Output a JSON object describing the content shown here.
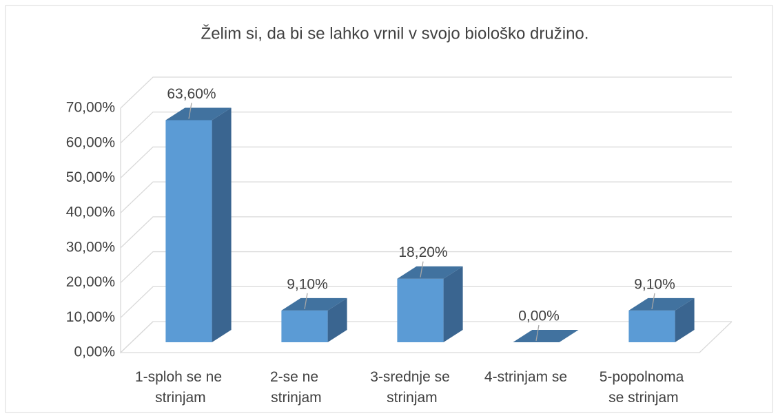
{
  "chart_data": {
    "type": "bar3d",
    "title": "Želim si, da bi se lahko vrnil v svojo biološko družino.",
    "categories": [
      "1-sploh se ne strinjam",
      "2-se ne strinjam",
      "3-srednje se strinjam",
      "4-strinjam se",
      "5-popolnoma se strinjam"
    ],
    "values": [
      63.6,
      9.1,
      18.2,
      0,
      9.1
    ],
    "value_labels": [
      "63,60%",
      "9,10%",
      "18,20%",
      "0,00%",
      "9,10%"
    ],
    "color": "#5b9bd5",
    "ylim": [
      0,
      70
    ],
    "yticks": [
      {
        "value": 0,
        "label": "0,00%"
      },
      {
        "value": 10,
        "label": "10,00%"
      },
      {
        "value": 20,
        "label": "20,00%"
      },
      {
        "value": 30,
        "label": "30,00%"
      },
      {
        "value": 40,
        "label": "40,00%"
      },
      {
        "value": 50,
        "label": "50,00%"
      },
      {
        "value": 60,
        "label": "60,00%"
      },
      {
        "value": 70,
        "label": "70,00%"
      }
    ],
    "grid": true
  }
}
